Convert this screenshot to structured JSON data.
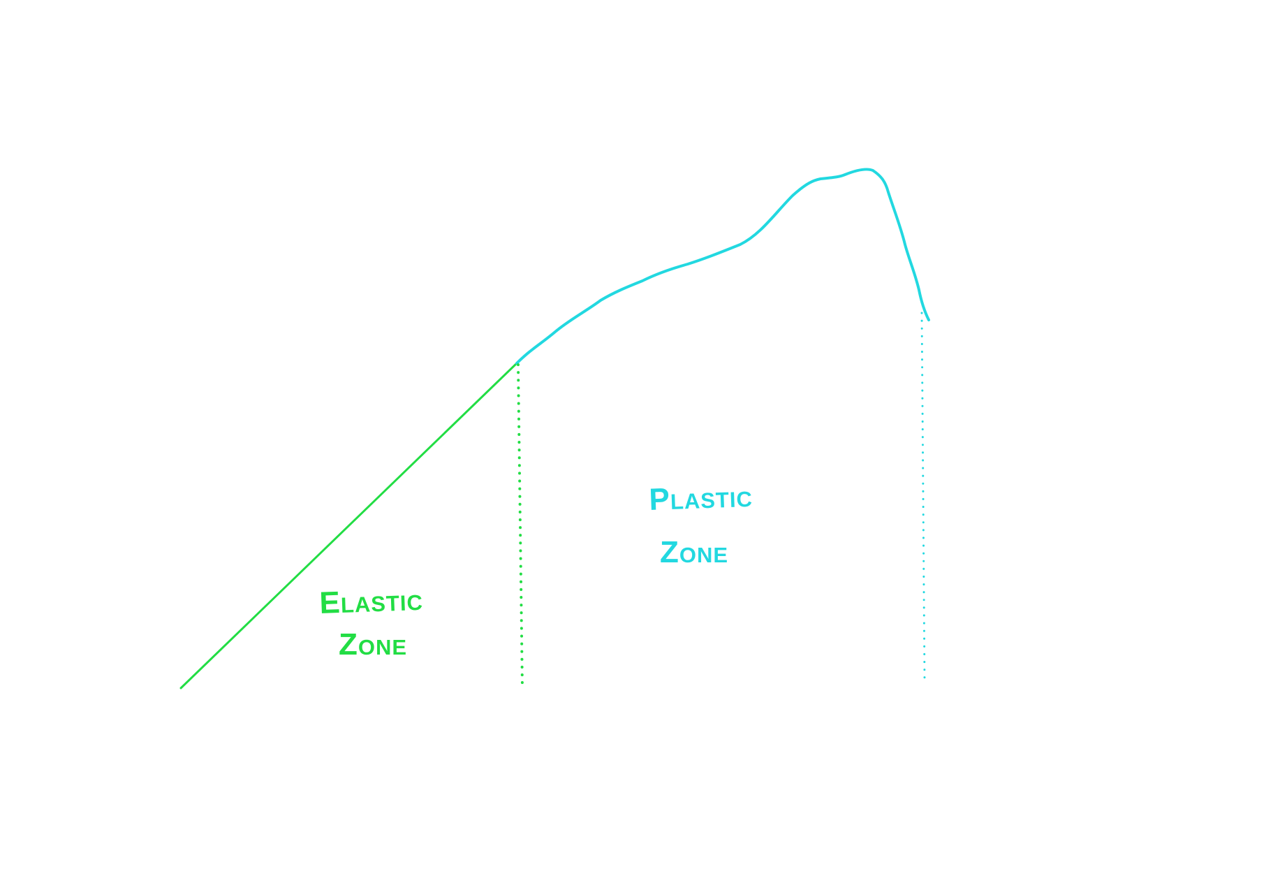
{
  "labels": {
    "elastic_line1": "Elastic",
    "elastic_line2": "Zone",
    "plastic_line1": "Plastic",
    "plastic_line2": "Zone"
  },
  "colors": {
    "elastic": "#22dd44",
    "plastic": "#22d8e0",
    "background": "#ffffff"
  }
}
